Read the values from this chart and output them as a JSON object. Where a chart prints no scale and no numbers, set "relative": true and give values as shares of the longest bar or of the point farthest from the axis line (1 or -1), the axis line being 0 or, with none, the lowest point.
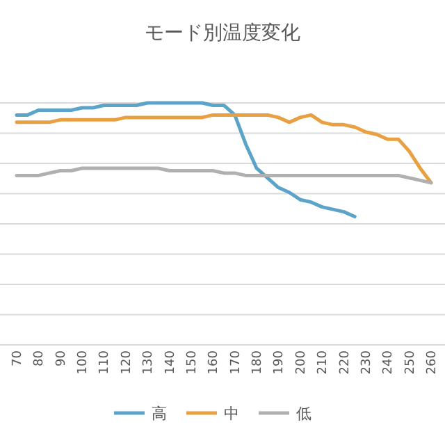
{
  "chart_data": {
    "type": "line",
    "title": "モード別温度変化",
    "relative": true,
    "grid": "y",
    "legend": "bottom",
    "line_style": "solid",
    "categories": [
      "70",
      null,
      "80",
      null,
      "90",
      null,
      "100",
      null,
      "110",
      null,
      "120",
      null,
      "130",
      null,
      "140",
      null,
      "150",
      null,
      "160",
      null,
      "170",
      null,
      "180",
      null,
      "190",
      null,
      "200",
      null,
      "210",
      null,
      "220",
      null,
      "230",
      null,
      "240",
      null,
      "250",
      null,
      "260"
    ],
    "series": [
      {
        "name": "高",
        "color": "#5ba3c9",
        "values": [
          0.95,
          0.95,
          0.97,
          0.97,
          0.97,
          0.97,
          0.98,
          0.98,
          0.99,
          0.99,
          0.99,
          0.99,
          1.0,
          1.0,
          1.0,
          1.0,
          1.0,
          1.0,
          0.99,
          0.99,
          0.95,
          0.83,
          0.73,
          0.69,
          0.65,
          0.63,
          0.6,
          0.59,
          0.57,
          0.56,
          0.55,
          0.53,
          null,
          null,
          null,
          null,
          null,
          null,
          null
        ]
      },
      {
        "name": "中",
        "color": "#e8a040",
        "values": [
          0.92,
          0.92,
          0.92,
          0.92,
          0.93,
          0.93,
          0.93,
          0.93,
          0.93,
          0.93,
          0.94,
          0.94,
          0.94,
          0.94,
          0.94,
          0.94,
          0.94,
          0.94,
          0.95,
          0.95,
          0.95,
          0.95,
          0.95,
          0.95,
          0.94,
          0.92,
          0.94,
          0.95,
          0.92,
          0.91,
          0.91,
          0.9,
          0.88,
          0.87,
          0.85,
          0.85,
          0.8,
          0.73,
          0.67
        ]
      },
      {
        "name": "低",
        "color": "#b0b0b0",
        "values": [
          0.7,
          0.7,
          0.7,
          0.71,
          0.72,
          0.72,
          0.73,
          0.73,
          0.73,
          0.73,
          0.73,
          0.73,
          0.73,
          0.73,
          0.72,
          0.72,
          0.72,
          0.72,
          0.72,
          0.71,
          0.71,
          0.7,
          0.7,
          0.7,
          0.7,
          0.7,
          0.7,
          0.7,
          0.7,
          0.7,
          0.7,
          0.7,
          0.7,
          0.7,
          0.7,
          0.7,
          0.69,
          0.68,
          0.67
        ]
      }
    ]
  }
}
